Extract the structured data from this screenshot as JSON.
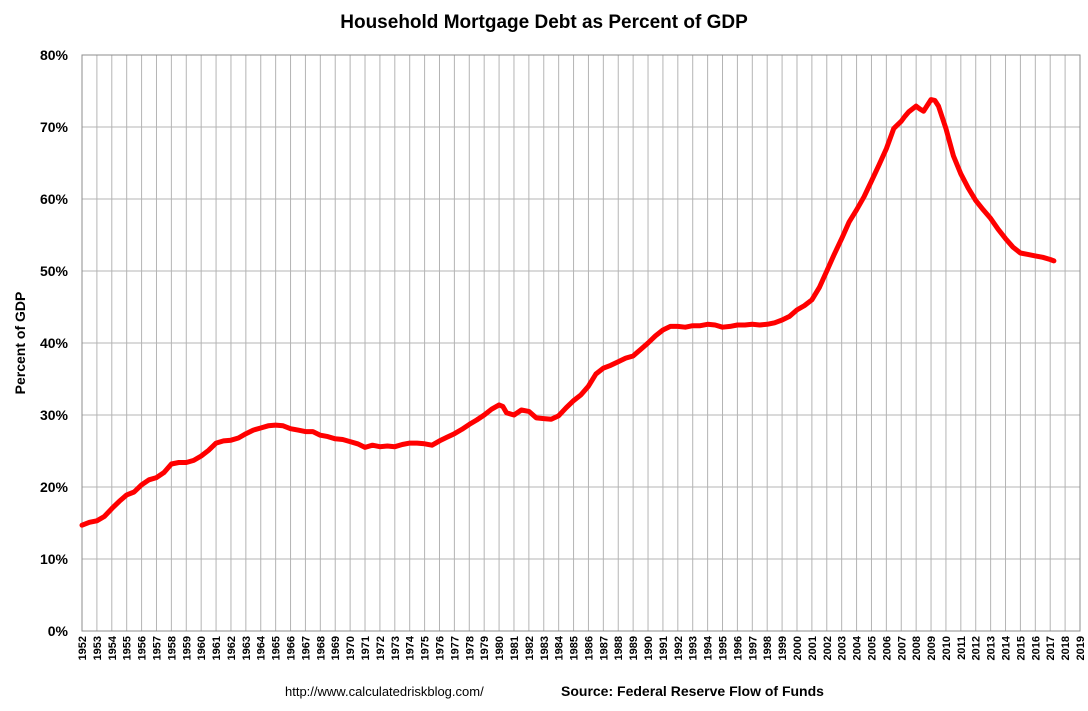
{
  "chart_data": {
    "type": "line",
    "title": "Household Mortgage Debt as Percent of GDP",
    "ylabel": "Percent of GDP",
    "xlabel": "",
    "xlim": [
      1952,
      2019
    ],
    "ylim": [
      0,
      80
    ],
    "y_ticks": [
      "0%",
      "10%",
      "20%",
      "30%",
      "40%",
      "50%",
      "60%",
      "70%",
      "80%"
    ],
    "x_ticks": [
      "1952",
      "1953",
      "1954",
      "1955",
      "1956",
      "1957",
      "1958",
      "1959",
      "1960",
      "1961",
      "1962",
      "1963",
      "1964",
      "1965",
      "1966",
      "1967",
      "1968",
      "1969",
      "1970",
      "1971",
      "1972",
      "1973",
      "1974",
      "1975",
      "1976",
      "1977",
      "1978",
      "1979",
      "1980",
      "1981",
      "1982",
      "1983",
      "1984",
      "1985",
      "1986",
      "1987",
      "1988",
      "1989",
      "1990",
      "1991",
      "1992",
      "1993",
      "1994",
      "1995",
      "1996",
      "1997",
      "1998",
      "1999",
      "2000",
      "2001",
      "2002",
      "2003",
      "2004",
      "2005",
      "2006",
      "2007",
      "2008",
      "2009",
      "2010",
      "2011",
      "2012",
      "2013",
      "2014",
      "2015",
      "2016",
      "2017",
      "2018",
      "2019"
    ],
    "grid": true,
    "line_color": "#ff0000",
    "series": [
      {
        "x": [
          1952,
          1952.5,
          1953,
          1953.5,
          1954,
          1954.5,
          1955,
          1955.5,
          1956,
          1956.5,
          1957,
          1957.5,
          1958,
          1958.5,
          1959,
          1959.5,
          1960,
          1960.5,
          1961,
          1961.5,
          1962,
          1962.5,
          1963,
          1963.5,
          1964,
          1964.5,
          1965,
          1965.5,
          1966,
          1966.5,
          1967,
          1967.5,
          1968,
          1968.5,
          1969,
          1969.5,
          1970,
          1970.5,
          1971,
          1971.5,
          1972,
          1972.5,
          1973,
          1973.5,
          1974,
          1974.5,
          1975,
          1975.5,
          1976,
          1976.5,
          1977,
          1977.5,
          1978,
          1978.5,
          1979,
          1979.5,
          1980,
          1980.25,
          1980.5,
          1981,
          1981.5,
          1982,
          1982.5,
          1983,
          1983.5,
          1984,
          1984.5,
          1985,
          1985.5,
          1986,
          1986.5,
          1987,
          1987.5,
          1988,
          1988.5,
          1989,
          1989.5,
          1990,
          1990.5,
          1991,
          1991.5,
          1992,
          1992.5,
          1993,
          1993.5,
          1994,
          1994.5,
          1995,
          1995.5,
          1996,
          1996.5,
          1997,
          1997.5,
          1998,
          1998.5,
          1999,
          1999.5,
          2000,
          2000.5,
          2001,
          2001.5,
          2002,
          2002.5,
          2003,
          2003.5,
          2004,
          2004.5,
          2005,
          2005.5,
          2006,
          2006.5,
          2007,
          2007.25,
          2007.5,
          2007.75,
          2008,
          2008.25,
          2008.5,
          2008.75,
          2009,
          2009.25,
          2009.5,
          2010,
          2010.5,
          2011,
          2011.5,
          2012,
          2012.5,
          2013,
          2013.5,
          2014,
          2014.5,
          2015,
          2015.5,
          2016,
          2016.5,
          2017,
          2017.25
        ],
        "values": [
          14.7,
          15.1,
          15.3,
          15.9,
          17.0,
          18.0,
          18.9,
          19.3,
          20.3,
          21.0,
          21.3,
          22.0,
          23.2,
          23.4,
          23.4,
          23.7,
          24.3,
          25.1,
          26.1,
          26.4,
          26.5,
          26.8,
          27.4,
          27.9,
          28.2,
          28.5,
          28.6,
          28.5,
          28.1,
          27.9,
          27.7,
          27.7,
          27.2,
          27.0,
          26.7,
          26.6,
          26.3,
          26.0,
          25.5,
          25.8,
          25.6,
          25.7,
          25.6,
          25.9,
          26.1,
          26.1,
          26.0,
          25.8,
          26.4,
          26.9,
          27.4,
          28.0,
          28.7,
          29.3,
          30.0,
          30.8,
          31.4,
          31.2,
          30.3,
          30.0,
          30.7,
          30.5,
          29.6,
          29.5,
          29.4,
          29.9,
          31.0,
          32.0,
          32.8,
          34.0,
          35.7,
          36.5,
          36.9,
          37.4,
          37.9,
          38.2,
          39.1,
          40.0,
          41.0,
          41.8,
          42.3,
          42.3,
          42.2,
          42.4,
          42.4,
          42.6,
          42.5,
          42.2,
          42.3,
          42.5,
          42.5,
          42.6,
          42.5,
          42.6,
          42.8,
          43.2,
          43.7,
          44.6,
          45.2,
          46.0,
          47.7,
          50.0,
          52.3,
          54.5,
          56.8,
          58.5,
          60.3,
          62.5,
          64.7,
          67.0,
          69.8,
          70.8,
          71.5,
          72.1,
          72.5,
          72.9,
          72.5,
          72.2,
          73.0,
          73.8,
          73.7,
          72.9,
          69.8,
          66.0,
          63.5,
          61.5,
          59.8,
          58.5,
          57.3,
          55.8,
          54.5,
          53.3,
          52.5,
          52.3,
          52.1,
          51.9,
          51.6,
          51.4
        ]
      }
    ]
  },
  "footer": {
    "url": "http://www.calculatedriskblog.com/",
    "source": "Source: Federal Reserve Flow of Funds"
  }
}
